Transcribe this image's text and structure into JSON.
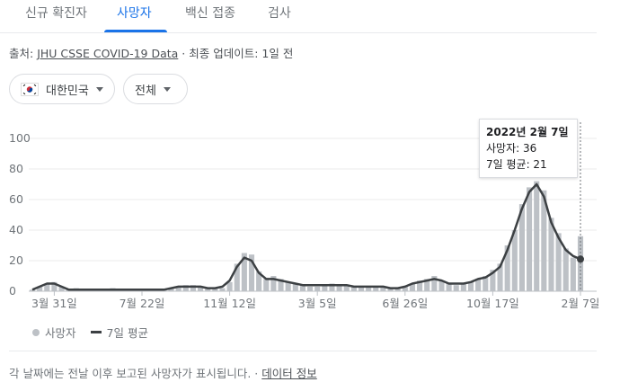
{
  "tabs": [
    {
      "label": "신규 확진자",
      "active": false
    },
    {
      "label": "사망자",
      "active": true
    },
    {
      "label": "백신 접종",
      "active": false
    },
    {
      "label": "검사",
      "active": false
    }
  ],
  "source": {
    "prefix": "출처: ",
    "link": "JHU CSSE COVID-19 Data",
    "suffix": " · 최종 업데이트: 1일 전"
  },
  "filters": {
    "country": "대한민국",
    "scope": "전체"
  },
  "tooltip": {
    "date": "2022년 2월 7일",
    "deaths": "사망자: 36",
    "avg": "7일 평균: 21"
  },
  "legend": {
    "deaths": "사망자",
    "avg": "7일 평균"
  },
  "footer": {
    "note": "각 날짜에는 전날 이후 보고된 사망자가 표시됩니다.",
    "sep": " · ",
    "link": "데이터 정보"
  },
  "colors": {
    "bars": "#bdc1c6",
    "avg_line": "#3c4043",
    "accent": "#1a73e8"
  },
  "chart_data": {
    "type": "bar",
    "title": "",
    "xlabel": "",
    "ylabel": "",
    "ylim": [
      0,
      100
    ],
    "yticks": [
      0,
      20,
      40,
      60,
      80,
      100
    ],
    "x_tick_labels": [
      "3월 31일",
      "7월 22일",
      "11월 12일",
      "3월 5일",
      "6월 26일",
      "10월 17일",
      "2월 7일"
    ],
    "x_tick_index": [
      3,
      15,
      27,
      39,
      51,
      63,
      75
    ],
    "grid": true,
    "series": [
      {
        "name": "사망자",
        "type": "bar",
        "values": [
          1,
          3,
          5,
          6,
          3,
          1,
          2,
          1,
          0,
          1,
          1,
          2,
          1,
          0,
          1,
          1,
          1,
          0,
          1,
          2,
          3,
          4,
          4,
          3,
          2,
          2,
          2,
          6,
          18,
          25,
          24,
          13,
          8,
          10,
          8,
          6,
          5,
          4,
          3,
          3,
          4,
          5,
          4,
          4,
          3,
          3,
          3,
          3,
          3,
          2,
          2,
          3,
          5,
          7,
          8,
          10,
          7,
          5,
          4,
          5,
          6,
          8,
          10,
          14,
          18,
          30,
          40,
          57,
          68,
          72,
          66,
          48,
          38,
          28,
          22,
          36
        ]
      },
      {
        "name": "7일 평균",
        "type": "line",
        "values": [
          1,
          3,
          5,
          5,
          3,
          1,
          1,
          1,
          1,
          1,
          1,
          1,
          1,
          1,
          1,
          1,
          1,
          1,
          1,
          2,
          3,
          3,
          3,
          3,
          2,
          2,
          3,
          7,
          16,
          22,
          20,
          12,
          8,
          8,
          7,
          6,
          5,
          4,
          4,
          4,
          4,
          4,
          4,
          4,
          3,
          3,
          3,
          3,
          3,
          2,
          2,
          3,
          5,
          6,
          7,
          8,
          7,
          5,
          5,
          5,
          6,
          8,
          9,
          12,
          16,
          27,
          40,
          54,
          65,
          70,
          62,
          45,
          35,
          27,
          23,
          21
        ]
      }
    ]
  }
}
